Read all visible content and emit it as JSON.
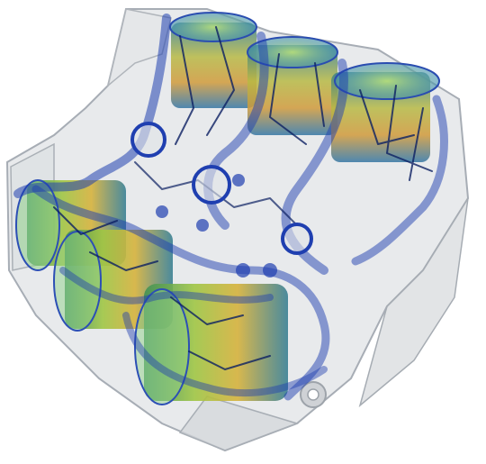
{
  "image": {
    "subject": "engine-block-volume-render",
    "colors": {
      "background": "#ffffff",
      "shell": "#c9cdd2",
      "shell_edge": "#9aa0a8",
      "mesh_blue": "#1f3fb0",
      "mesh_dark": "#0b1f63",
      "cyl_green": "#7fc24a",
      "cyl_yellow": "#d7b53b",
      "cyl_teal": "#4fb3b0"
    }
  }
}
